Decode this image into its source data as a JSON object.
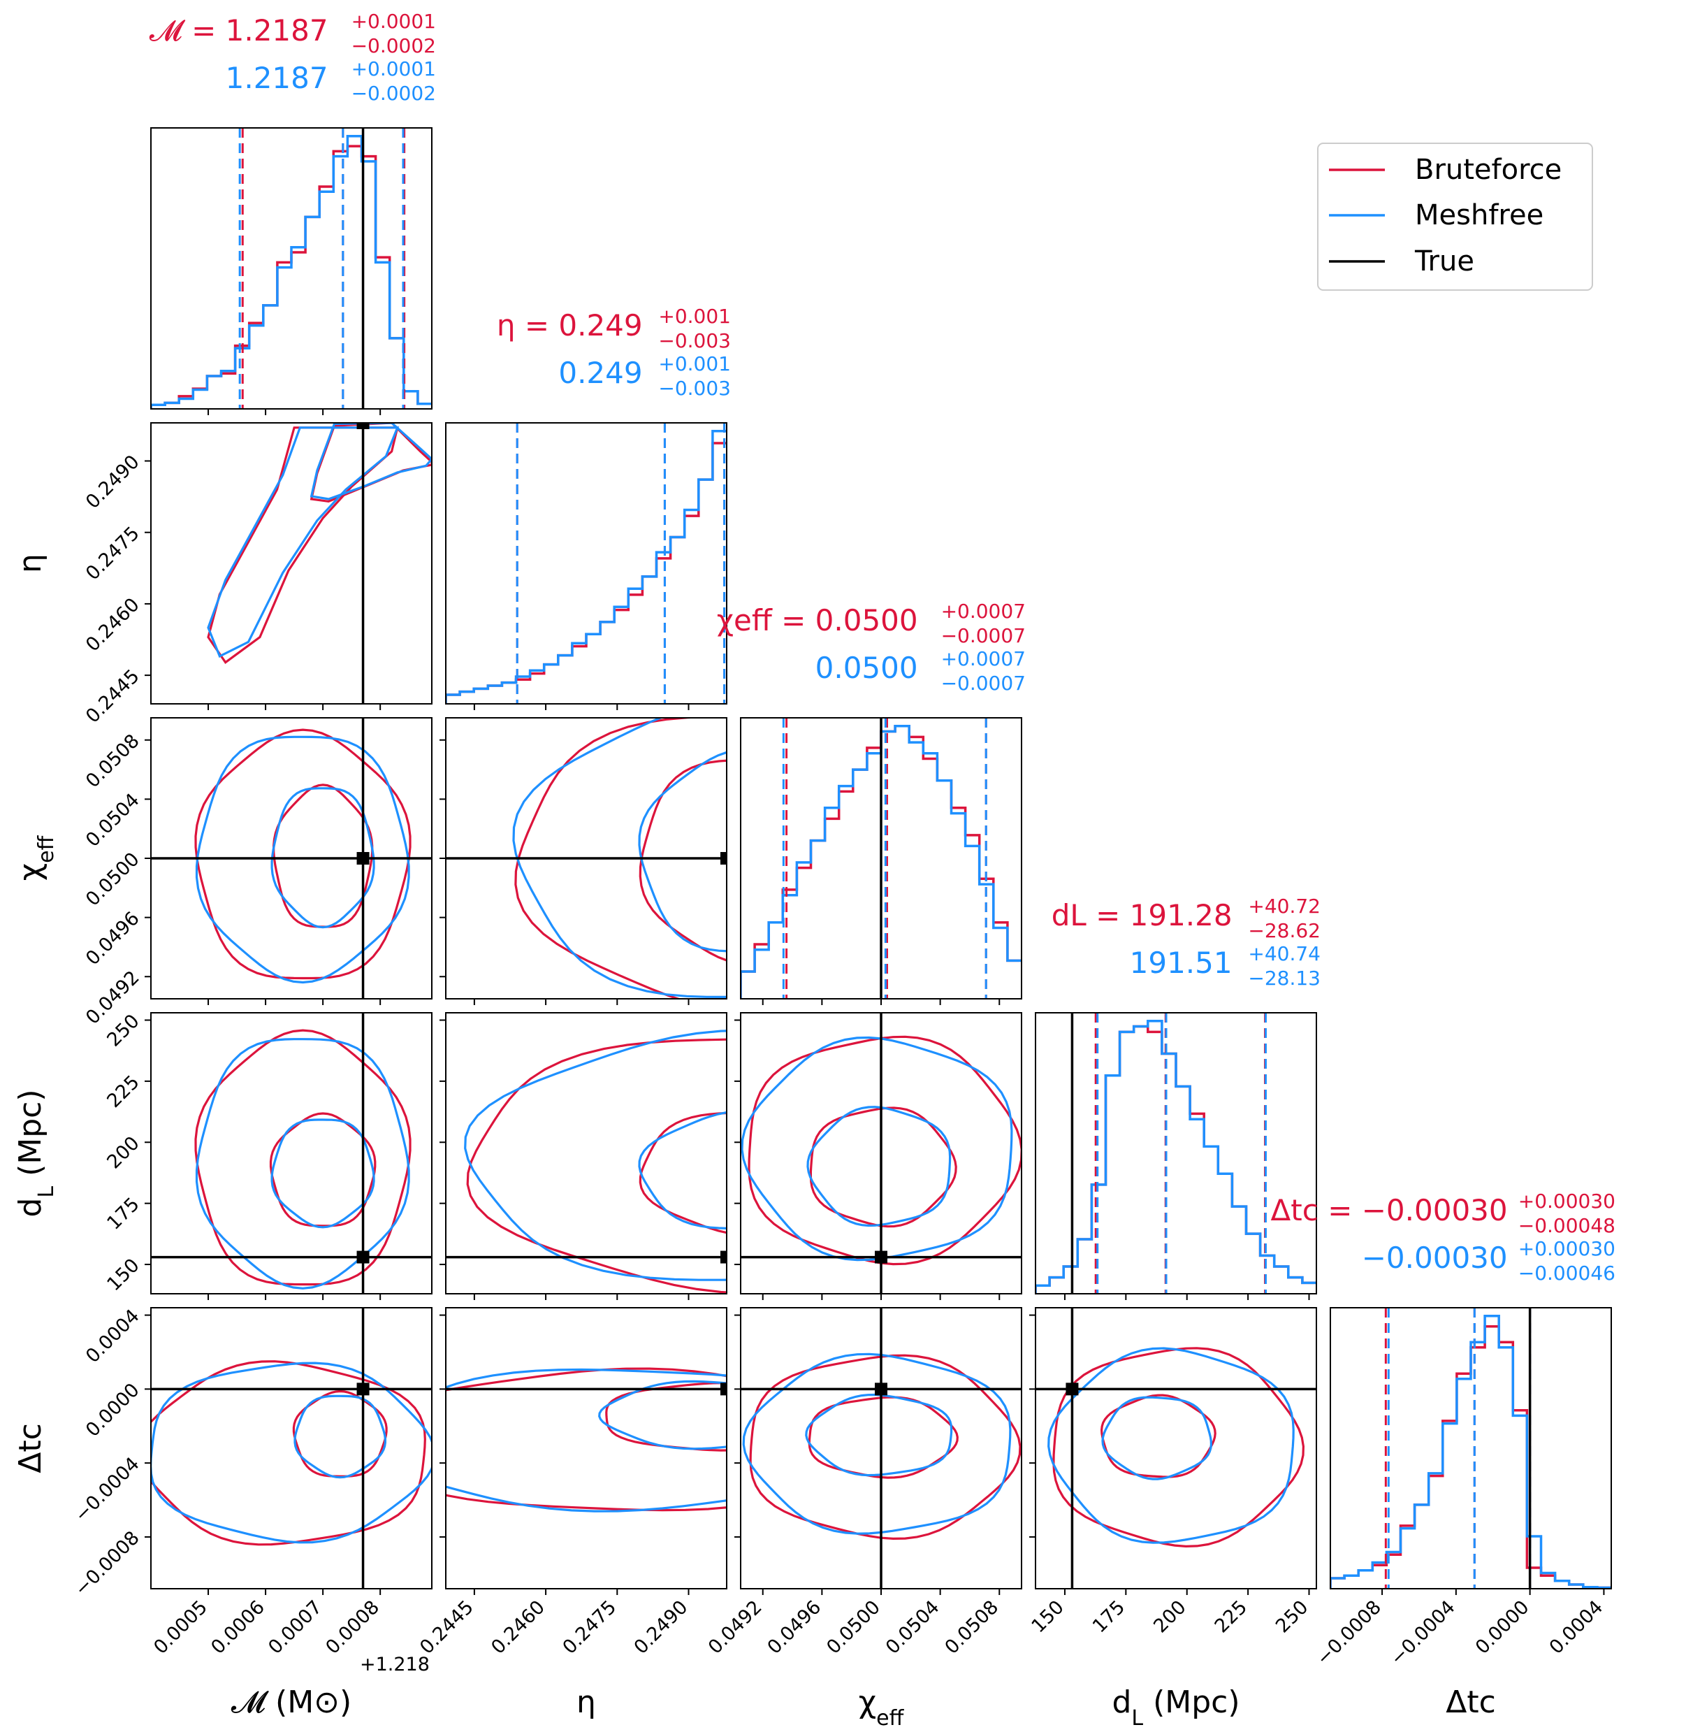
{
  "chart_data": {
    "type": "corner",
    "colors": {
      "bruteforce": "#dc143c",
      "meshfree": "#1e90ff",
      "true": "#000000"
    },
    "legend": {
      "position": "top-right",
      "entries": [
        "Bruteforce",
        "Meshfree",
        "True"
      ]
    },
    "parameters": [
      {
        "key": "mc",
        "range": [
          0.0004,
          0.00089
        ],
        "offset": 1.218,
        "offset_label": "+1.218",
        "ticks": [
          0.0005,
          0.0006,
          0.0007,
          0.0008
        ],
        "tick_labels": [
          "0.0005",
          "0.0006",
          "0.0007",
          "0.0008"
        ],
        "axis_label": "𝓜 (M⊙)",
        "true_value": 0.00077,
        "summary_brute": {
          "name": "𝓜",
          "value": "1.2187",
          "plus": "+0.0001",
          "minus": "−0.0002"
        },
        "summary_mesh": {
          "value": "1.2187",
          "plus": "+0.0001",
          "minus": "−0.0002"
        },
        "quantiles_brute": [
          0.00056,
          0.000735,
          0.000842
        ],
        "quantiles_mesh": [
          0.000555,
          0.000735,
          0.00084
        ],
        "hist_brute": [
          0.8,
          1.2,
          2.5,
          4,
          6.5,
          7,
          12.5,
          17,
          20.5,
          29,
          31,
          38,
          44,
          51,
          52,
          50,
          30,
          14,
          3.5,
          1
        ],
        "hist_mesh": [
          0.8,
          1.2,
          2,
          3.8,
          6.5,
          7.5,
          12,
          16.5,
          20.5,
          28,
          32,
          38,
          43,
          50,
          54,
          49,
          29,
          14,
          3.5,
          1
        ]
      },
      {
        "key": "eta",
        "range": [
          0.2439,
          0.2498
        ],
        "offset": null,
        "offset_label": "",
        "ticks": [
          0.2445,
          0.246,
          0.2475,
          0.249
        ],
        "tick_labels": [
          "0.2445",
          "0.2460",
          "0.2475",
          "0.2490"
        ],
        "axis_label": "η",
        "true_value": null,
        "summary_brute": {
          "name": "η",
          "value": "0.249",
          "plus": "+0.001",
          "minus": "−0.003"
        },
        "summary_mesh": {
          "value": "0.249",
          "plus": "+0.001",
          "minus": "−0.003"
        },
        "quantiles_brute": [
          0.2454,
          0.2485,
          0.24975
        ],
        "quantiles_mesh": [
          0.2454,
          0.2485,
          0.24975
        ],
        "hist_brute": [
          1.5,
          2,
          2.5,
          3,
          3.5,
          4,
          5,
          6.5,
          8,
          9.5,
          11.5,
          13.5,
          15.5,
          18,
          21,
          24,
          27.5,
          31,
          37,
          43
        ],
        "hist_mesh": [
          1.5,
          2,
          2.5,
          3,
          3.5,
          4.5,
          5.5,
          6.5,
          8,
          10,
          11.5,
          13.5,
          16,
          19,
          21,
          25,
          27.5,
          32,
          37,
          45
        ]
      },
      {
        "key": "chi",
        "range": [
          0.04905,
          0.05095
        ],
        "offset": null,
        "offset_label": "",
        "ticks": [
          0.0492,
          0.0496,
          0.05,
          0.0504,
          0.0508
        ],
        "tick_labels": [
          "0.0492",
          "0.0496",
          "0.0500",
          "0.0504",
          "0.0508"
        ],
        "axis_label": "χeff",
        "true_value": 0.05,
        "summary_brute": {
          "name": "χeff",
          "value": "0.0500",
          "plus": "+0.0007",
          "minus": "−0.0007"
        },
        "summary_mesh": {
          "value": "0.0500",
          "plus": "+0.0007",
          "minus": "−0.0007"
        },
        "quantiles_brute": [
          0.04936,
          0.05004,
          0.05071
        ],
        "quantiles_mesh": [
          0.04934,
          0.05003,
          0.05071
        ],
        "hist_brute": [
          5,
          10,
          14,
          20,
          24,
          29,
          33,
          38,
          42,
          46,
          49,
          50,
          48,
          44,
          40,
          35,
          30,
          22,
          14,
          7
        ],
        "hist_mesh": [
          5,
          9,
          14,
          19,
          25,
          29,
          35,
          39,
          42,
          45,
          49,
          50,
          47,
          45,
          40,
          34,
          28,
          21,
          13,
          7
        ]
      },
      {
        "key": "dl",
        "range": [
          138,
          253
        ],
        "offset": null,
        "offset_label": "",
        "ticks": [
          150,
          175,
          200,
          225,
          250
        ],
        "tick_labels": [
          "150",
          "175",
          "200",
          "225",
          "250"
        ],
        "axis_label": "dL (Mpc)",
        "true_value": 153,
        "summary_brute": {
          "name": "dL",
          "value": "191.28",
          "plus": "+40.72",
          "minus": "−28.62"
        },
        "summary_mesh": {
          "value": "191.51",
          "plus": "+40.74",
          "minus": "−28.13"
        },
        "quantiles_brute": [
          162.66,
          191.28,
          232.0
        ],
        "quantiles_mesh": [
          163.38,
          191.51,
          232.25
        ],
        "hist_brute": [
          1.5,
          3,
          5,
          10,
          20,
          40,
          48,
          49,
          48,
          44,
          38,
          33,
          27,
          22,
          16,
          11,
          7,
          5,
          3,
          2
        ],
        "hist_mesh": [
          1.5,
          3,
          5,
          10,
          20,
          40,
          48,
          49,
          50,
          44,
          38,
          32,
          27,
          22,
          16,
          11,
          7,
          5,
          3,
          2
        ]
      },
      {
        "key": "dt",
        "range": [
          -0.00108,
          0.00044
        ],
        "offset": null,
        "offset_label": "",
        "ticks": [
          -0.0008,
          -0.0004,
          0.0,
          0.0004
        ],
        "tick_labels": [
          "−0.0008",
          "−0.0004",
          "0.0000",
          "0.0004"
        ],
        "axis_label": "Δtc",
        "true_value": 0.0,
        "summary_brute": {
          "name": "Δtc",
          "value": "−0.00030",
          "plus": "+0.00030",
          "minus": "−0.00048"
        },
        "summary_mesh": {
          "value": "−0.00030",
          "plus": "+0.00030",
          "minus": "−0.00046"
        },
        "quantiles_brute": [
          -0.00078,
          -0.0003,
          0.0
        ],
        "quantiles_mesh": [
          -0.000765,
          -0.0003,
          0.0
        ],
        "hist_brute": [
          2,
          2.5,
          3.5,
          4.5,
          6.5,
          12,
          16,
          21.5,
          32,
          41,
          46,
          50,
          47,
          34,
          4,
          2.5,
          1.5,
          0.8,
          0.3,
          0.2
        ],
        "hist_mesh": [
          2,
          2.5,
          3.5,
          5,
          7,
          11.5,
          16,
          22,
          31.5,
          40,
          47,
          52,
          46,
          33,
          10,
          3,
          1.5,
          0.8,
          0.3,
          0.2
        ]
      }
    ]
  }
}
